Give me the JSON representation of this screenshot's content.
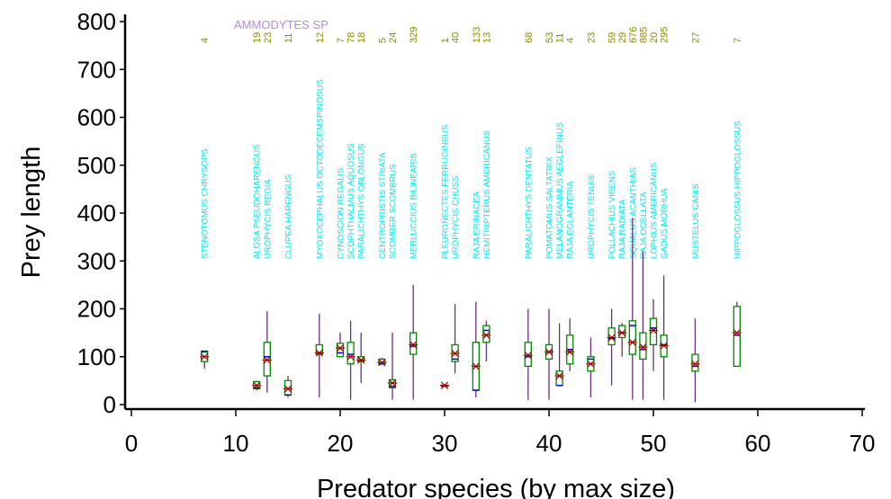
{
  "chart_data": {
    "type": "boxplot",
    "title": "",
    "prey_label": "AMMODYTES SP",
    "xlabel": "Predator species (by max size)",
    "ylabel": "Prey length",
    "xlim": [
      0,
      70
    ],
    "ylim": [
      0,
      800
    ],
    "xticks": [
      "0",
      "10",
      "20",
      "30",
      "40",
      "50",
      "60",
      "70"
    ],
    "yticks": [
      "0",
      "100",
      "200",
      "300",
      "400",
      "500",
      "600",
      "700",
      "800"
    ],
    "colors": {
      "box": "#008800",
      "median": "#0000dd",
      "whisker": "#6b2f7a",
      "mean": "#a00000",
      "species_label": "#00e5ee",
      "count": "#8b8b00",
      "prey": "#b48ad9"
    },
    "series": [
      {
        "x": 7,
        "name": "STENOTOMUS CHRYSOPS",
        "n": "4",
        "min": 75,
        "q1": 90,
        "median": 110,
        "q3": 112,
        "max": 112,
        "mean": 100
      },
      {
        "x": 12,
        "name": "ALOSA PSEUDOHARENGUS",
        "n": "19",
        "min": 30,
        "q1": 33,
        "median": 35,
        "q3": 48,
        "max": 50,
        "mean": 40
      },
      {
        "x": 13,
        "name": "UROPHYCIS REGIA",
        "n": "23",
        "min": 25,
        "q1": 60,
        "median": 100,
        "q3": 130,
        "max": 195,
        "mean": 93
      },
      {
        "x": 15,
        "name": "CLUPEA HARENGUS",
        "n": "11",
        "min": 15,
        "q1": 20,
        "median": 20,
        "q3": 50,
        "max": 60,
        "mean": 33
      },
      {
        "x": 18,
        "name": "MYOXOCEPHALUS OCTODECEMSPINOSUS",
        "n": "12",
        "min": 15,
        "q1": 105,
        "median": 108,
        "q3": 125,
        "max": 190,
        "mean": 108
      },
      {
        "x": 20,
        "name": "CYNOSCION REGALIS",
        "n": "7",
        "min": 100,
        "q1": 100,
        "median": 108,
        "q3": 128,
        "max": 150,
        "mean": 118
      },
      {
        "x": 21,
        "name": "SCOPHTHALMUS AQUOSUS",
        "n": "78",
        "min": 10,
        "q1": 85,
        "median": 105,
        "q3": 130,
        "max": 175,
        "mean": 100
      },
      {
        "x": 22,
        "name": "PARALICHTHYS OBLONGUS",
        "n": "18",
        "min": 45,
        "q1": 90,
        "median": 93,
        "q3": 100,
        "max": 150,
        "mean": 93
      },
      {
        "x": 24,
        "name": "CENTROPRISTIS STRIATA",
        "n": "5",
        "min": 85,
        "q1": 85,
        "median": 85,
        "q3": 95,
        "max": 98,
        "mean": 88
      },
      {
        "x": 25,
        "name": "SCOMBER SCOMBRUS",
        "n": "24",
        "min": 10,
        "q1": 35,
        "median": 38,
        "q3": 52,
        "max": 150,
        "mean": 45
      },
      {
        "x": 27,
        "name": "MERLUCCIUS BILINEARIS",
        "n": "329",
        "min": 10,
        "q1": 105,
        "median": 122,
        "q3": 150,
        "max": 250,
        "mean": 125
      },
      {
        "x": 30,
        "name": "PLEURONECTES FERRUGINEUS",
        "n": "1",
        "min": 40,
        "q1": 40,
        "median": 40,
        "q3": 40,
        "max": 40,
        "mean": 40
      },
      {
        "x": 31,
        "name": "UROPHYCIS CHUSS",
        "n": "40",
        "min": 65,
        "q1": 90,
        "median": 95,
        "q3": 125,
        "max": 210,
        "mean": 107
      },
      {
        "x": 33,
        "name": "RAJA ERINACEA",
        "n": "133",
        "min": 15,
        "q1": 30,
        "median": 30,
        "q3": 130,
        "max": 215,
        "mean": 80
      },
      {
        "x": 34,
        "name": "HEMITRIPTERUS AMERICANUS",
        "n": "13",
        "min": 90,
        "q1": 130,
        "median": 155,
        "q3": 165,
        "max": 175,
        "mean": 145
      },
      {
        "x": 38,
        "name": "PARALICHTHYS DENTATUS",
        "n": "68",
        "min": 10,
        "q1": 80,
        "median": 100,
        "q3": 130,
        "max": 200,
        "mean": 103
      },
      {
        "x": 40,
        "name": "POMATOMUS SALTATRIX",
        "n": "53",
        "min": 10,
        "q1": 95,
        "median": 110,
        "q3": 125,
        "max": 200,
        "mean": 110
      },
      {
        "x": 41,
        "name": "MELANOGRAMMUS AEGLEFINUS",
        "n": "11",
        "min": 40,
        "q1": 40,
        "median": 40,
        "q3": 70,
        "max": 170,
        "mean": 60
      },
      {
        "x": 42,
        "name": "RAJA EGLANTERIA",
        "n": "4",
        "min": 70,
        "q1": 85,
        "median": 115,
        "q3": 145,
        "max": 180,
        "mean": 110
      },
      {
        "x": 44,
        "name": "UROPHYCIS TENUIS",
        "n": "23",
        "min": 15,
        "q1": 70,
        "median": 95,
        "q3": 100,
        "max": 140,
        "mean": 85
      },
      {
        "x": 46,
        "name": "POLLACHIUS VIRENS",
        "n": "59",
        "min": 40,
        "q1": 125,
        "median": 138,
        "q3": 160,
        "max": 200,
        "mean": 140
      },
      {
        "x": 47,
        "name": "RAJA RADIATA",
        "n": "29",
        "min": 100,
        "q1": 140,
        "median": 150,
        "q3": 165,
        "max": 170,
        "mean": 150
      },
      {
        "x": 48,
        "name": "SQUALUS ACANTHIAS",
        "n": "676",
        "min": 10,
        "q1": 105,
        "median": 165,
        "q3": 175,
        "max": 390,
        "mean": 130
      },
      {
        "x": 49,
        "name": "RAJA OCELLATA",
        "n": "885",
        "min": 10,
        "q1": 95,
        "median": 115,
        "q3": 150,
        "max": 320,
        "mean": 120
      },
      {
        "x": 50,
        "name": "LOPHIUS AMERICANUS",
        "n": "20",
        "min": 70,
        "q1": 125,
        "median": 160,
        "q3": 180,
        "max": 220,
        "mean": 155
      },
      {
        "x": 51,
        "name": "GADUS MORHUA",
        "n": "295",
        "min": 10,
        "q1": 100,
        "median": 125,
        "q3": 145,
        "max": 270,
        "mean": 123
      },
      {
        "x": 54,
        "name": "MUSTELUS CANIS",
        "n": "27",
        "min": 5,
        "q1": 70,
        "median": 80,
        "q3": 105,
        "max": 180,
        "mean": 85
      },
      {
        "x": 58,
        "name": "HIPPOGLOSSUS HIPPOGLOSSUS",
        "n": "7",
        "min": 80,
        "q1": 80,
        "median": 145,
        "q3": 205,
        "max": 215,
        "mean": 150
      }
    ]
  }
}
